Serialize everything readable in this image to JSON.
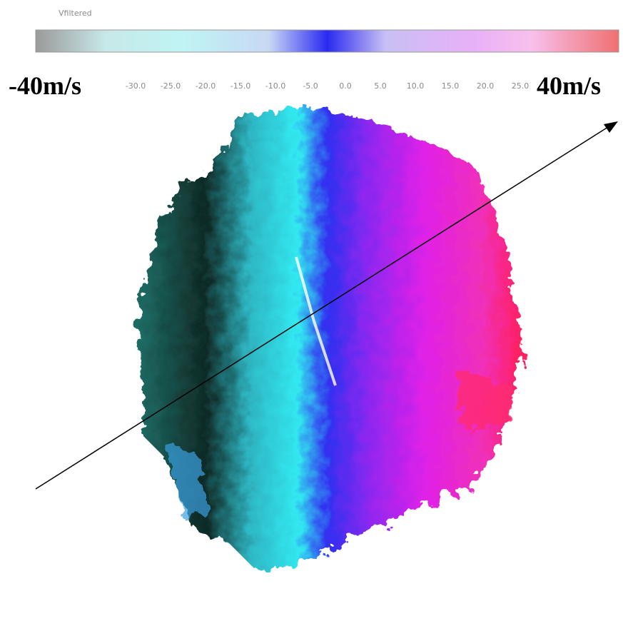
{
  "colorbar": {
    "title": "Vfiltered",
    "min_label": "-40m/s",
    "max_label": "40m/s",
    "ticks": [
      "-30.0",
      "-25.0",
      "-20.0",
      "-15.0",
      "-10.0",
      "-5.0",
      "0.0",
      "5.0",
      "10.0",
      "15.0",
      "20.0",
      "25.0"
    ]
  }
}
